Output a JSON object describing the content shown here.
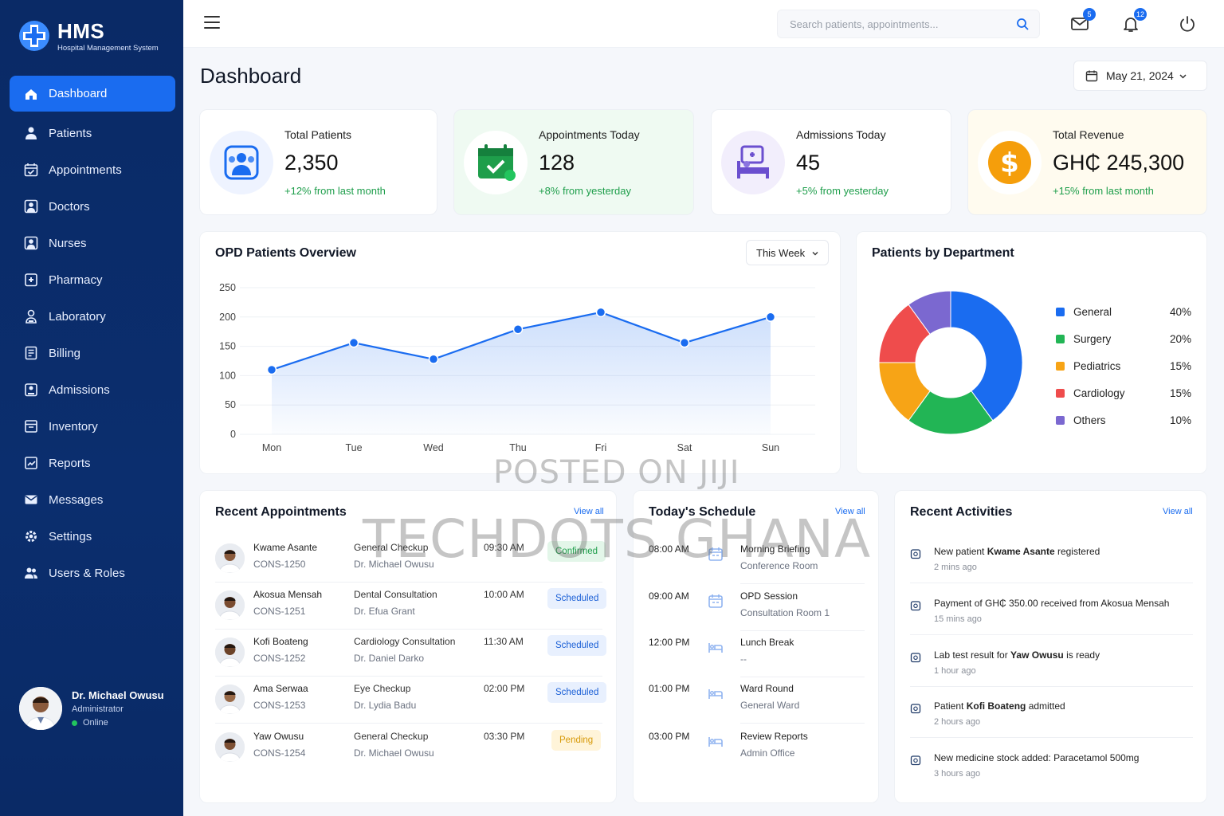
{
  "brand": {
    "title": "HMS",
    "subtitle": "Hospital Management System"
  },
  "sidebar": {
    "items": [
      {
        "label": "Dashboard",
        "icon": "home-icon",
        "active": true
      },
      {
        "label": "Patients",
        "icon": "user-icon"
      },
      {
        "label": "Appointments",
        "icon": "calendar-check-icon"
      },
      {
        "label": "Doctors",
        "icon": "doctor-icon"
      },
      {
        "label": "Nurses",
        "icon": "nurse-icon"
      },
      {
        "label": "Pharmacy",
        "icon": "pharmacy-icon"
      },
      {
        "label": "Laboratory",
        "icon": "lab-icon"
      },
      {
        "label": "Billing",
        "icon": "billing-icon"
      },
      {
        "label": "Admissions",
        "icon": "admission-icon"
      },
      {
        "label": "Inventory",
        "icon": "inventory-icon"
      },
      {
        "label": "Reports",
        "icon": "reports-icon"
      },
      {
        "label": "Messages",
        "icon": "mail-icon"
      },
      {
        "label": "Settings",
        "icon": "gear-icon"
      },
      {
        "label": "Users & Roles",
        "icon": "users-icon"
      }
    ],
    "profile": {
      "name": "Dr. Michael Owusu",
      "role": "Administrator",
      "status": "Online"
    }
  },
  "topbar": {
    "search_placeholder": "Search patients, appointments...",
    "mail_count": "5",
    "notification_count": "12"
  },
  "page": {
    "title": "Dashboard",
    "date": "May 21, 2024"
  },
  "stats": [
    {
      "label": "Total Patients",
      "value": "2,350",
      "change": "+12% from last month",
      "color": "#1a6cf0"
    },
    {
      "label": "Appointments Today",
      "value": "128",
      "change": "+8% from yesterday",
      "color": "#1e9e4b"
    },
    {
      "label": "Admissions Today",
      "value": "45",
      "change": "+5% from yesterday",
      "color": "#6b4fcf"
    },
    {
      "label": "Total Revenue",
      "value": "GH₵ 245,300",
      "change": "+15% from last month",
      "color": "#f59e0b"
    }
  ],
  "opd": {
    "title": "OPD Patients Overview",
    "range": "This Week",
    "chart_data": {
      "type": "area",
      "categories": [
        "Mon",
        "Tue",
        "Wed",
        "Thu",
        "Fri",
        "Sat",
        "Sun"
      ],
      "values": [
        110,
        156,
        128,
        179,
        208,
        156,
        200
      ],
      "ylim": [
        0,
        250
      ],
      "yticks": [
        0,
        50,
        100,
        150,
        200,
        250
      ],
      "grid": true,
      "color": "#1a6cf0"
    }
  },
  "departments": {
    "title": "Patients by Department",
    "chart_data": {
      "type": "pie",
      "categories": [
        "General",
        "Surgery",
        "Pediatrics",
        "Cardiology",
        "Others"
      ],
      "values": [
        40,
        20,
        15,
        15,
        10
      ],
      "labels": [
        "40%",
        "20%",
        "15%",
        "15%",
        "10%"
      ],
      "colors": [
        "#1a6cf0",
        "#22b555",
        "#f7a416",
        "#ef4c4c",
        "#7b68d0"
      ],
      "legend": "right"
    }
  },
  "appointments": {
    "title": "Recent Appointments",
    "view_all": "View all",
    "rows": [
      {
        "name": "Kwame Asante",
        "id": "CONS-1250",
        "type": "General Checkup",
        "doctor": "Dr. Michael Owusu",
        "time": "09:30 AM",
        "status": "Confirmed",
        "tone": "green"
      },
      {
        "name": "Akosua Mensah",
        "id": "CONS-1251",
        "type": "Dental Consultation",
        "doctor": "Dr. Efua Grant",
        "time": "10:00 AM",
        "status": "Scheduled",
        "tone": "blue"
      },
      {
        "name": "Kofi Boateng",
        "id": "CONS-1252",
        "type": "Cardiology Consultation",
        "doctor": "Dr. Daniel Darko",
        "time": "11:30 AM",
        "status": "Scheduled",
        "tone": "blue"
      },
      {
        "name": "Ama Serwaa",
        "id": "CONS-1253",
        "type": "Eye Checkup",
        "doctor": "Dr. Lydia Badu",
        "time": "02:00 PM",
        "status": "Scheduled",
        "tone": "blue"
      },
      {
        "name": "Yaw Owusu",
        "id": "CONS-1254",
        "type": "General Checkup",
        "doctor": "Dr. Michael Owusu",
        "time": "03:30 PM",
        "status": "Pending",
        "tone": "yellow"
      }
    ]
  },
  "schedule": {
    "title": "Today's Schedule",
    "view_all": "View all",
    "rows": [
      {
        "time": "08:00 AM",
        "title": "Morning Briefing",
        "location": "Conference Room",
        "icon": "calendar-icon"
      },
      {
        "time": "09:00 AM",
        "title": "OPD Session",
        "location": "Consultation Room 1",
        "icon": "calendar-icon"
      },
      {
        "time": "12:00 PM",
        "title": "Lunch Break",
        "location": "--",
        "icon": "bed-icon"
      },
      {
        "time": "01:00 PM",
        "title": "Ward Round",
        "location": "General Ward",
        "icon": "bed-icon"
      },
      {
        "time": "03:00 PM",
        "title": "Review Reports",
        "location": "Admin Office",
        "icon": "bed-icon"
      }
    ]
  },
  "activities": {
    "title": "Recent Activities",
    "view_all": "View all",
    "rows": [
      {
        "pre": "New patient ",
        "bold": "Kwame Asante",
        "post": " registered",
        "time": "2 mins ago"
      },
      {
        "pre": "Payment of GH₵ 350.00 received from Akosua Mensah",
        "bold": "",
        "post": "",
        "time": "15 mins ago"
      },
      {
        "pre": "Lab test result for ",
        "bold": "Yaw Owusu",
        "post": " is ready",
        "time": "1 hour ago"
      },
      {
        "pre": "Patient ",
        "bold": "Kofi Boateng",
        "post": " admitted",
        "time": "2 hours ago"
      },
      {
        "pre": "New medicine stock added: Paracetamol 500mg",
        "bold": "",
        "post": "",
        "time": "3 hours ago"
      }
    ]
  },
  "watermark": {
    "line1": "POSTED ON JIJI",
    "line2": "TECHDOTS GHANA"
  }
}
